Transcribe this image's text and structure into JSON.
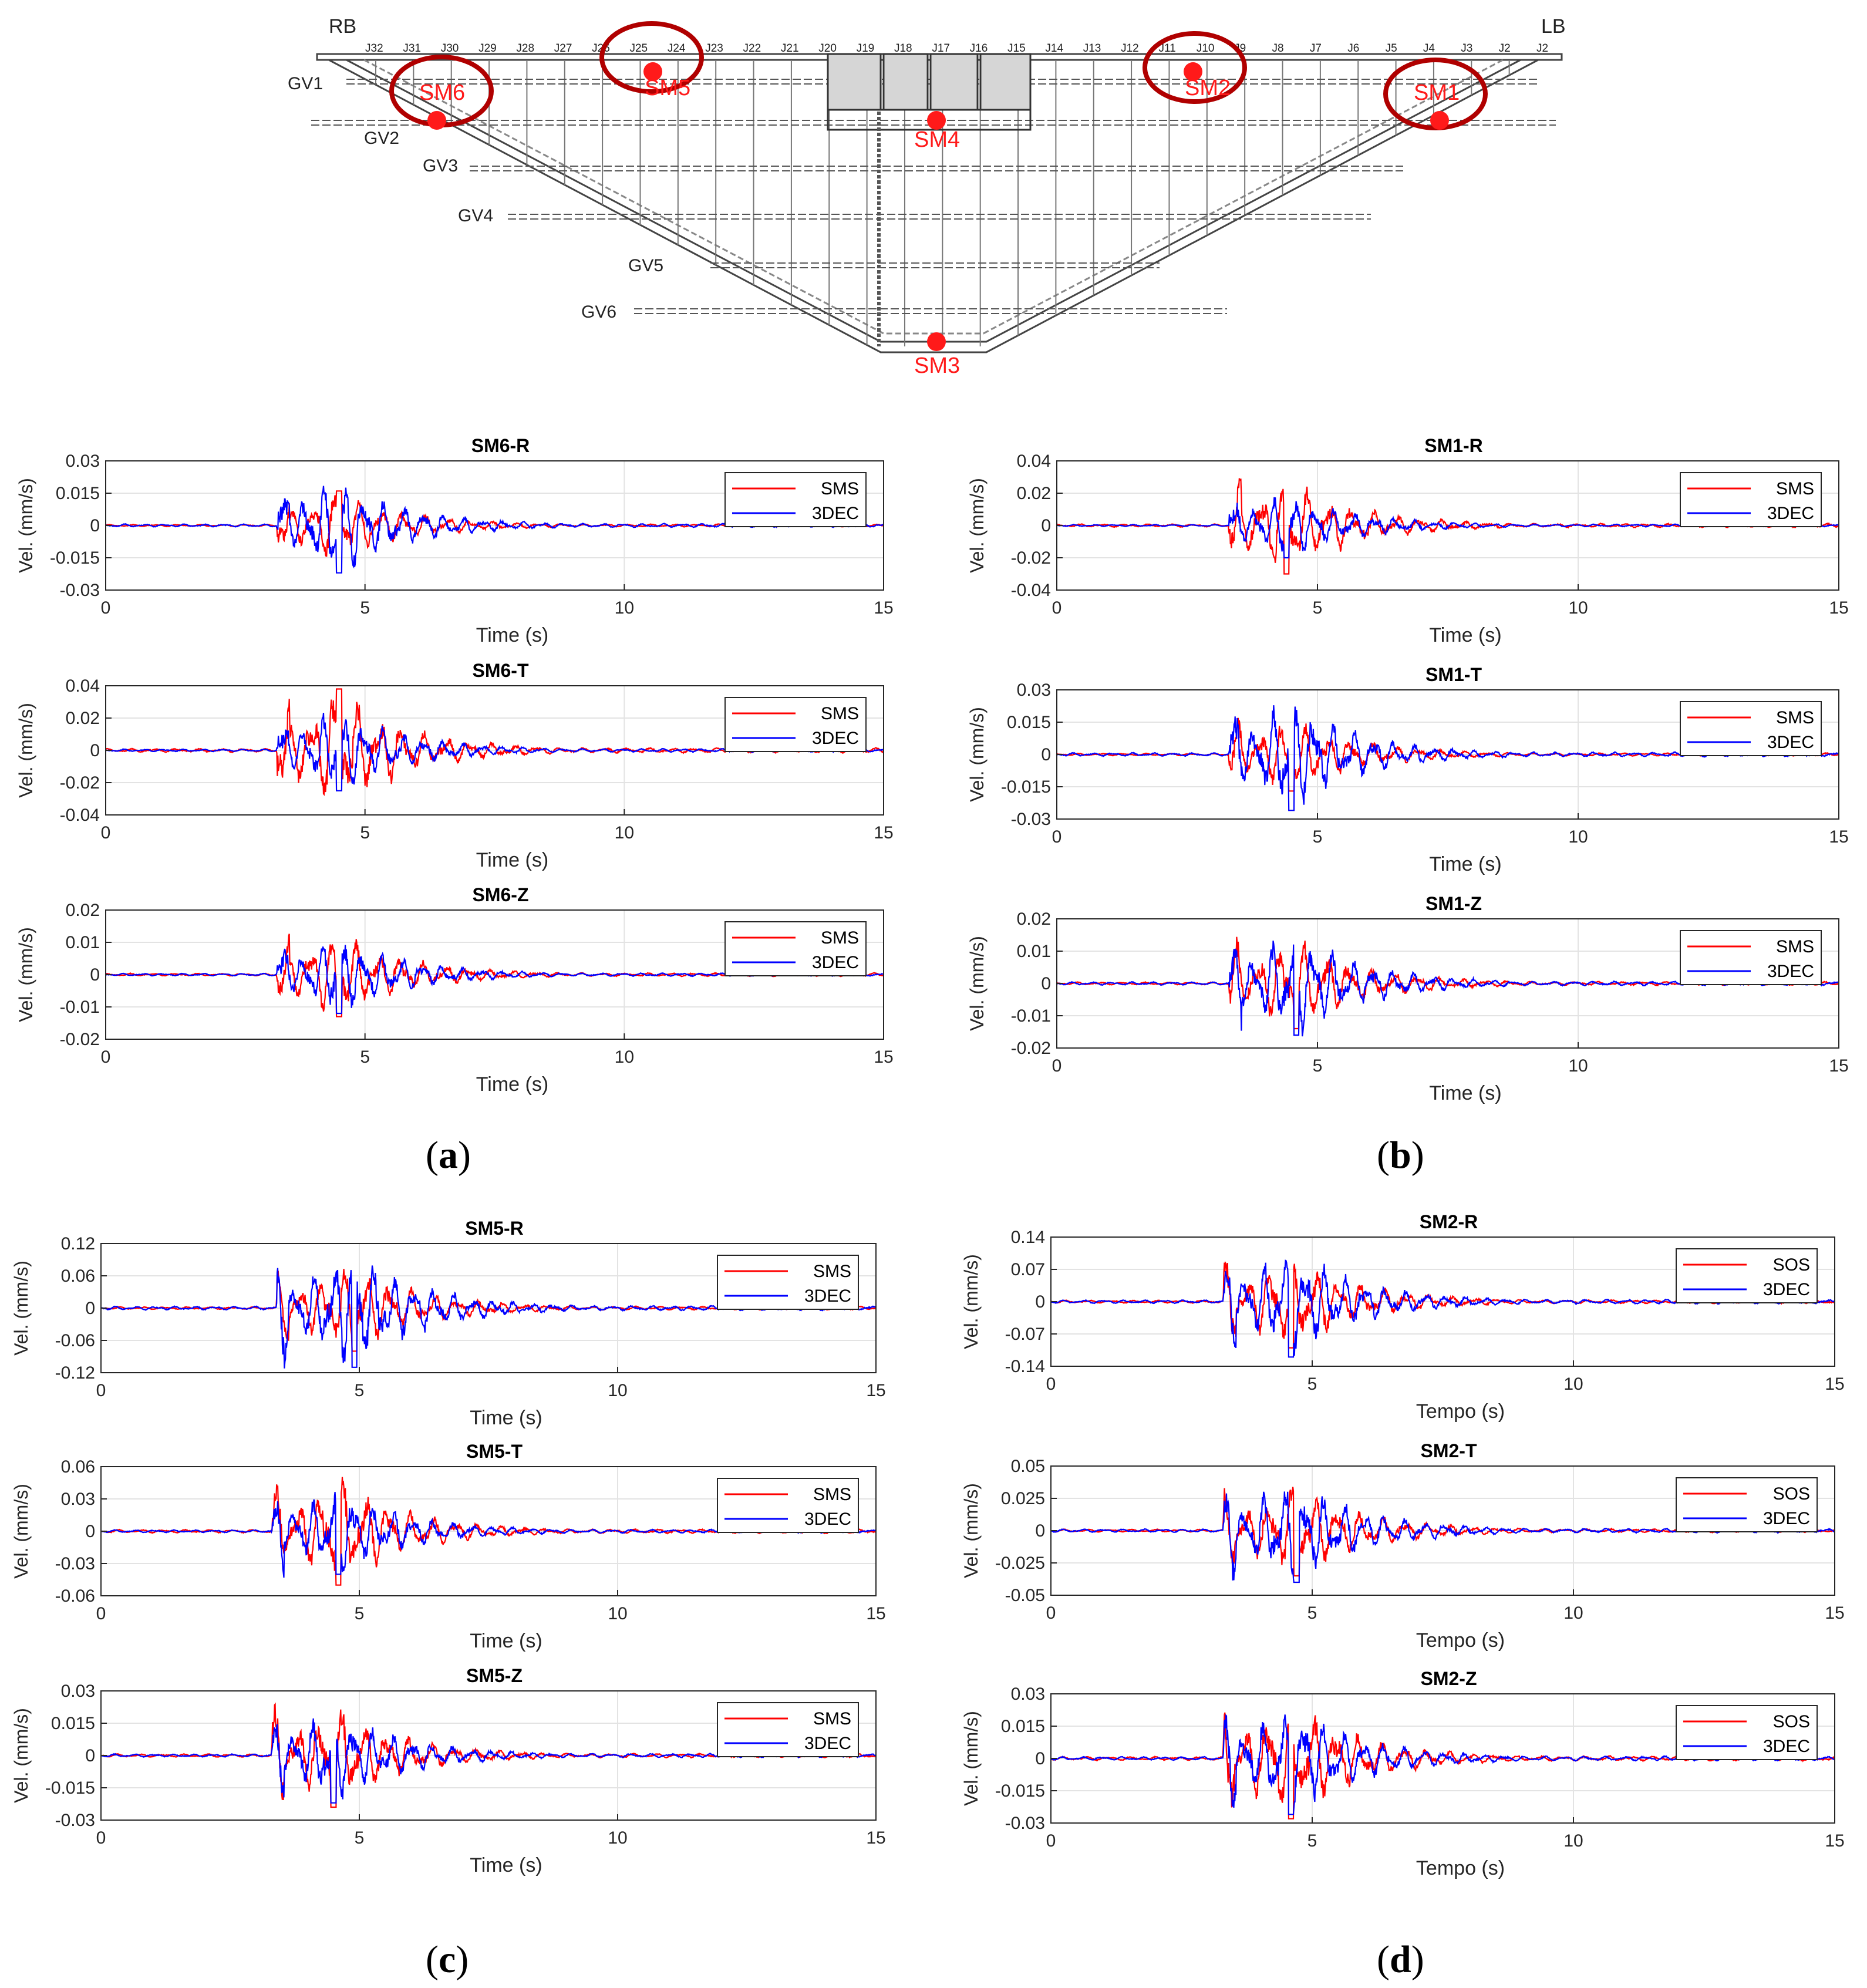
{
  "dam": {
    "bank_left": "RB",
    "bank_right": "LB",
    "joints": [
      "J32",
      "J31",
      "J30",
      "J29",
      "J28",
      "J27",
      "J26",
      "J25",
      "J24",
      "J23",
      "J22",
      "J21",
      "J20",
      "J19",
      "J18",
      "J17",
      "J16",
      "J15",
      "J14",
      "J13",
      "J12",
      "J11",
      "J10",
      "J9",
      "J8",
      "J7",
      "J6",
      "J5",
      "J4",
      "J3",
      "J2",
      "J2"
    ],
    "galleries": [
      "GV1",
      "GV2",
      "GV3",
      "GV4",
      "GV5",
      "GV6"
    ],
    "sensors": [
      "SM6",
      "SM5",
      "SM2",
      "SM1",
      "SM4",
      "SM3"
    ],
    "circled_sensors": [
      "SM6",
      "SM5",
      "SM2",
      "SM1"
    ],
    "sensor_color": "#ff1a1a",
    "circle_color": "#b00000"
  },
  "panel_letters": [
    "a",
    "b",
    "c",
    "d"
  ],
  "colors": {
    "sms": "#ff0000",
    "model": "#0000ff"
  },
  "chart_data": [
    {
      "id": "SM6-R",
      "panel": "a",
      "type": "line",
      "title": "SM6-R",
      "xlabel": "Time (s)",
      "ylabel": "Vel. (mm/s)",
      "xlim": [
        0,
        15
      ],
      "ylim": [
        -0.03,
        0.03
      ],
      "yticks": [
        "-0.03",
        "-0.015",
        "0",
        "0.015",
        "0.03"
      ],
      "xticks": [
        "0",
        "5",
        "10",
        "15"
      ],
      "legend": [
        "SMS",
        "3DEC"
      ],
      "legend_loc": "top-right",
      "grid": true,
      "onset": 3.3,
      "peak_t": 4.5,
      "amp_sms": 0.016,
      "amp_model": 0.022
    },
    {
      "id": "SM6-T",
      "panel": "a",
      "type": "line",
      "title": "SM6-T",
      "xlabel": "Time (s)",
      "ylabel": "Vel. (mm/s)",
      "xlim": [
        0,
        15
      ],
      "ylim": [
        -0.04,
        0.04
      ],
      "yticks": [
        "-0.04",
        "-0.02",
        "0",
        "0.02",
        "0.04"
      ],
      "xticks": [
        "0",
        "5",
        "10",
        "15"
      ],
      "legend": [
        "SMS",
        "3DEC"
      ],
      "legend_loc": "top-right",
      "grid": true,
      "onset": 3.3,
      "peak_t": 4.5,
      "amp_sms": 0.038,
      "amp_model": 0.025
    },
    {
      "id": "SM6-Z",
      "panel": "a",
      "type": "line",
      "title": "SM6-Z",
      "xlabel": "Time (s)",
      "ylabel": "Vel. (mm/s)",
      "xlim": [
        0,
        15
      ],
      "ylim": [
        -0.02,
        0.02
      ],
      "yticks": [
        "-0.02",
        "-0.01",
        "0",
        "0.01",
        "0.02"
      ],
      "xticks": [
        "0",
        "5",
        "10",
        "15"
      ],
      "legend": [
        "SMS",
        "3DEC"
      ],
      "legend_loc": "top-right",
      "grid": true,
      "onset": 3.3,
      "peak_t": 4.5,
      "amp_sms": 0.013,
      "amp_model": 0.012
    },
    {
      "id": "SM1-R",
      "panel": "b",
      "type": "line",
      "title": "SM1-R",
      "xlabel": "Time (s)",
      "ylabel": "Vel. (mm/s)",
      "xlim": [
        0,
        15
      ],
      "ylim": [
        -0.04,
        0.04
      ],
      "yticks": [
        "-0.04",
        "-0.02",
        "0",
        "0.02",
        "0.04"
      ],
      "xticks": [
        "0",
        "5",
        "10",
        "15"
      ],
      "legend": [
        "SMS",
        "3DEC"
      ],
      "legend_loc": "top-right",
      "grid": true,
      "onset": 3.3,
      "peak_t": 4.4,
      "amp_sms": 0.03,
      "amp_model": 0.02
    },
    {
      "id": "SM1-T",
      "panel": "b",
      "type": "line",
      "title": "SM1-T",
      "xlabel": "Time (s)",
      "ylabel": "Vel. (mm/s)",
      "xlim": [
        0,
        15
      ],
      "ylim": [
        -0.03,
        0.03
      ],
      "yticks": [
        "-0.03",
        "-0.015",
        "0",
        "0.015",
        "0.03"
      ],
      "xticks": [
        "0",
        "5",
        "10",
        "15"
      ],
      "legend": [
        "SMS",
        "3DEC"
      ],
      "legend_loc": "top-right",
      "grid": true,
      "onset": 3.3,
      "peak_t": 4.5,
      "amp_sms": 0.017,
      "amp_model": 0.026
    },
    {
      "id": "SM1-Z",
      "panel": "b",
      "type": "line",
      "title": "SM1-Z",
      "xlabel": "Time (s)",
      "ylabel": "Vel. (mm/s)",
      "xlim": [
        0,
        15
      ],
      "ylim": [
        -0.02,
        0.02
      ],
      "yticks": [
        "-0.02",
        "-0.01",
        "0",
        "0.01",
        "0.02"
      ],
      "xticks": [
        "0",
        "5",
        "10",
        "15"
      ],
      "legend": [
        "SMS",
        "3DEC"
      ],
      "legend_loc": "top-right",
      "grid": true,
      "onset": 3.3,
      "peak_t": 4.6,
      "amp_sms": 0.014,
      "amp_model": 0.016
    },
    {
      "id": "SM5-R",
      "panel": "c",
      "type": "line",
      "title": "SM5-R",
      "xlabel": "Time (s)",
      "ylabel": "Vel. (mm/s)",
      "xlim": [
        0,
        15
      ],
      "ylim": [
        -0.12,
        0.12
      ],
      "yticks": [
        "-0.12",
        "-0.06",
        "0",
        "0.06",
        "0.12"
      ],
      "xticks": [
        "0",
        "5",
        "10",
        "15"
      ],
      "legend": [
        "SMS",
        "3DEC"
      ],
      "legend_loc": "top-right",
      "grid": true,
      "onset": 3.4,
      "peak_t": 4.9,
      "amp_sms": 0.08,
      "amp_model": 0.11
    },
    {
      "id": "SM5-T",
      "panel": "c",
      "type": "line",
      "title": "SM5-T",
      "xlabel": "Time (s)",
      "ylabel": "Vel. (mm/s)",
      "xlim": [
        0,
        15
      ],
      "ylim": [
        -0.06,
        0.06
      ],
      "yticks": [
        "-0.06",
        "-0.03",
        "0",
        "0.03",
        "0.06"
      ],
      "xticks": [
        "0",
        "5",
        "10",
        "15"
      ],
      "legend": [
        "SMS",
        "3DEC"
      ],
      "legend_loc": "top-right",
      "grid": true,
      "onset": 3.3,
      "peak_t": 4.6,
      "amp_sms": 0.05,
      "amp_model": 0.04
    },
    {
      "id": "SM5-Z",
      "panel": "c",
      "type": "line",
      "title": "SM5-Z",
      "xlabel": "Time (s)",
      "ylabel": "Vel. (mm/s)",
      "xlim": [
        0,
        15
      ],
      "ylim": [
        -0.03,
        0.03
      ],
      "yticks": [
        "-0.03",
        "-0.015",
        "0",
        "0.015",
        "0.03"
      ],
      "xticks": [
        "0",
        "5",
        "10",
        "15"
      ],
      "legend": [
        "SMS",
        "3DEC"
      ],
      "legend_loc": "top-right",
      "grid": true,
      "onset": 3.3,
      "peak_t": 4.5,
      "amp_sms": 0.024,
      "amp_model": 0.022
    },
    {
      "id": "SM2-R",
      "panel": "d",
      "type": "line",
      "title": "SM2-R",
      "xlabel": "Tempo (s)",
      "ylabel": "Vel. (mm/s)",
      "xlim": [
        0,
        15
      ],
      "ylim": [
        -0.14,
        0.14
      ],
      "yticks": [
        "-0.14",
        "-0.07",
        "0",
        "0.07",
        "0.14"
      ],
      "xticks": [
        "0",
        "5",
        "10",
        "15"
      ],
      "legend": [
        "SOS",
        "3DEC"
      ],
      "legend_loc": "top-right",
      "grid": true,
      "onset": 3.3,
      "peak_t": 4.6,
      "amp_sms": 0.1,
      "amp_model": 0.12
    },
    {
      "id": "SM2-T",
      "panel": "d",
      "type": "line",
      "title": "SM2-T",
      "xlabel": "Tempo (s)",
      "ylabel": "Vel. (mm/s)",
      "xlim": [
        0,
        15
      ],
      "ylim": [
        -0.05,
        0.05
      ],
      "yticks": [
        "-0.05",
        "-0.025",
        "0",
        "0.025",
        "0.05"
      ],
      "xticks": [
        "0",
        "5",
        "10",
        "15"
      ],
      "legend": [
        "SOS",
        "3DEC"
      ],
      "legend_loc": "top-right",
      "grid": true,
      "onset": 3.3,
      "peak_t": 4.7,
      "amp_sms": 0.035,
      "amp_model": 0.04
    },
    {
      "id": "SM2-Z",
      "panel": "d",
      "type": "line",
      "title": "SM2-Z",
      "xlabel": "Tempo (s)",
      "ylabel": "Vel. (mm/s)",
      "xlim": [
        0,
        15
      ],
      "ylim": [
        -0.03,
        0.03
      ],
      "yticks": [
        "-0.03",
        "-0.015",
        "0",
        "0.015",
        "0.03"
      ],
      "xticks": [
        "0",
        "5",
        "10",
        "15"
      ],
      "legend": [
        "SOS",
        "3DEC"
      ],
      "legend_loc": "top-right",
      "grid": true,
      "onset": 3.3,
      "peak_t": 4.6,
      "amp_sms": 0.028,
      "amp_model": 0.026
    }
  ]
}
